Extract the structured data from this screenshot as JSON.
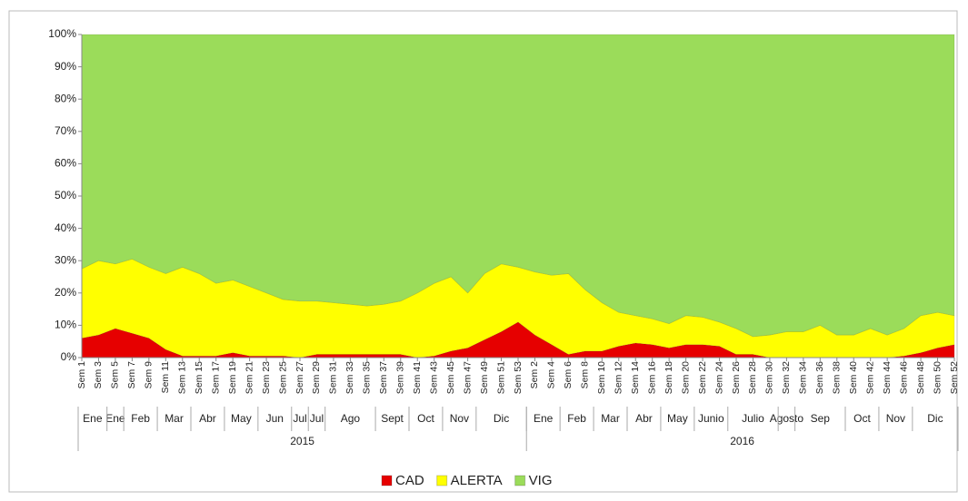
{
  "chart_data": {
    "type": "area_stacked_100",
    "categories": [
      "Sem 1",
      "Sem 3",
      "Sem 5",
      "Sem 7",
      "Sem 9",
      "Sem 11",
      "Sem 13",
      "Sem 15",
      "Sem 17",
      "Sem 19",
      "Sem 21",
      "Sem 23",
      "Sem 25",
      "Sem 27",
      "Sem 29",
      "Sem 31",
      "Sem 33",
      "Sem 35",
      "Sem 37",
      "Sem 39",
      "Sem 41",
      "Sem 43",
      "Sem 45",
      "Sem 47",
      "Sem 49",
      "Sem 51",
      "Sem 53",
      "Sem 2",
      "Sem 4",
      "Sem 6",
      "Sem 8",
      "Sem 10",
      "Sem 12",
      "Sem 14",
      "Sem 16",
      "Sem 18",
      "Sem 20",
      "Sem 22",
      "Sem 24",
      "Sem 26",
      "Sem 28",
      "Sem 30",
      "Sem 32",
      "Sem 34",
      "Sem 36",
      "Sem 38",
      "Sem 40",
      "Sem 42",
      "Sem 44",
      "Sem 46",
      "Sem 48",
      "Sem 50",
      "Sem 52"
    ],
    "month_labels": [
      "Ene",
      null,
      "Ene",
      "Feb",
      null,
      "Mar",
      null,
      "Abr",
      null,
      "May",
      null,
      "Jun",
      null,
      "Jul",
      "Jul",
      "Ago",
      null,
      null,
      "Sept",
      null,
      "Oct",
      null,
      "Nov",
      null,
      "Dic",
      null,
      null,
      "Ene",
      null,
      "Feb",
      null,
      "Mar",
      null,
      "Abr",
      null,
      "May",
      null,
      "Junio",
      null,
      "Julio",
      null,
      null,
      "Agosto",
      "Sep",
      null,
      null,
      "Oct",
      null,
      "Nov",
      null,
      "Dic",
      null,
      null
    ],
    "year_labels": [
      "2015",
      null,
      null,
      null,
      null,
      null,
      null,
      null,
      null,
      null,
      null,
      null,
      null,
      null,
      null,
      null,
      null,
      null,
      null,
      null,
      null,
      null,
      null,
      null,
      null,
      null,
      null,
      "2016",
      null,
      null,
      null,
      null,
      null,
      null,
      null,
      null,
      null,
      null,
      null,
      null,
      null,
      null,
      null,
      null,
      null,
      null,
      null,
      null,
      null,
      null,
      null,
      null,
      null
    ],
    "series": [
      {
        "name": "CAD",
        "color": "#e60000",
        "values": [
          6,
          7,
          9,
          7.5,
          6,
          2.5,
          0.5,
          0.5,
          0.5,
          1.5,
          0.5,
          0.5,
          0.5,
          0,
          1,
          1,
          1,
          1,
          1,
          1,
          0,
          0.5,
          2,
          3,
          5.5,
          8,
          11,
          7,
          4,
          1,
          2,
          2,
          3.5,
          4.5,
          4,
          3,
          4,
          4,
          3.5,
          1,
          1,
          0,
          0,
          0,
          0,
          0,
          0,
          0,
          0,
          0.5,
          1.5,
          3,
          4
        ]
      },
      {
        "name": "ALERTA",
        "color": "#ffff00",
        "values": [
          21.5,
          23,
          20,
          23,
          22,
          23.5,
          27.5,
          25.5,
          22.5,
          22.5,
          21.5,
          19.5,
          17.5,
          17.5,
          16.5,
          16,
          15.5,
          15,
          15.5,
          16.5,
          20,
          22.5,
          23,
          17,
          20.5,
          21,
          17,
          19.5,
          21.5,
          25,
          19,
          15,
          10.5,
          8.5,
          8,
          7.5,
          9,
          8.5,
          7.5,
          8,
          5.5,
          7,
          8,
          8,
          10,
          7,
          7,
          9,
          7,
          8.5,
          11.5,
          11,
          9
        ]
      },
      {
        "name": "VIG",
        "color": "#9bdc5a",
        "values": [
          72.5,
          70,
          71,
          69.5,
          72,
          74,
          72,
          74,
          77,
          76,
          78,
          80,
          82,
          82.5,
          82.5,
          83,
          83.5,
          84,
          83.5,
          82.5,
          80,
          77,
          75,
          80,
          74,
          71,
          72,
          73.5,
          74.5,
          74,
          79,
          83,
          86,
          87,
          88,
          89.5,
          87,
          87.5,
          89,
          91,
          93.5,
          93,
          92,
          92,
          90,
          93,
          93,
          91,
          93,
          91,
          87,
          86,
          87
        ]
      }
    ],
    "ylim": [
      0,
      100
    ],
    "yticks": [
      {
        "value": 0,
        "label": "0%"
      },
      {
        "value": 10,
        "label": "10%"
      },
      {
        "value": 20,
        "label": "20%"
      },
      {
        "value": 30,
        "label": "30%"
      },
      {
        "value": 40,
        "label": "40%"
      },
      {
        "value": 50,
        "label": "50%"
      },
      {
        "value": 60,
        "label": "60%"
      },
      {
        "value": 70,
        "label": "70%"
      },
      {
        "value": 80,
        "label": "80%"
      },
      {
        "value": 90,
        "label": "90%"
      },
      {
        "value": 100,
        "label": "100%"
      }
    ],
    "legend": "bottom"
  }
}
